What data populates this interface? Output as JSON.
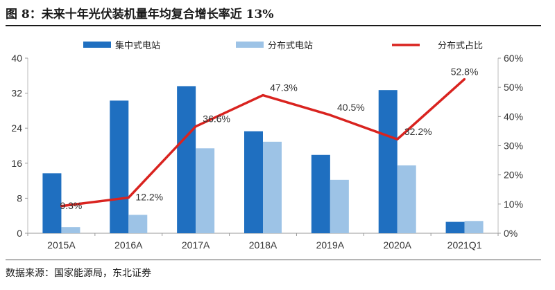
{
  "figure": {
    "title": "图 8：未来十年光伏装机量年均复合增长率近 13%",
    "source": "数据来源：国家能源局，东北证券"
  },
  "chart_data": {
    "type": "bar",
    "categories": [
      "2015A",
      "2016A",
      "2017A",
      "2018A",
      "2019A",
      "2020A",
      "2021Q1"
    ],
    "series": [
      {
        "name": "集中式电站",
        "type": "bar",
        "axis": "left",
        "color": "#1f6fc0",
        "values": [
          13.7,
          30.3,
          33.6,
          23.3,
          17.9,
          32.7,
          2.6
        ]
      },
      {
        "name": "分布式电站",
        "type": "bar",
        "axis": "left",
        "color": "#9dc3e6",
        "values": [
          1.4,
          4.2,
          19.4,
          20.9,
          12.2,
          15.5,
          2.8
        ]
      },
      {
        "name": "分布式占比",
        "type": "line",
        "axis": "right",
        "color": "#d9231f",
        "values": [
          9.3,
          12.2,
          36.6,
          47.3,
          40.5,
          32.2,
          52.8
        ],
        "labels": [
          "9.3%",
          "12.2%",
          "36.6%",
          "47.3%",
          "40.5%",
          "32.2%",
          "52.8%"
        ]
      }
    ],
    "y_left": {
      "ylim": [
        0,
        40
      ],
      "ticks": [
        "0",
        "8",
        "16",
        "24",
        "32",
        "40"
      ]
    },
    "y_right": {
      "ylim": [
        0,
        60
      ],
      "ticks": [
        "0%",
        "10%",
        "20%",
        "30%",
        "40%",
        "50%",
        "60%"
      ]
    },
    "grid": false,
    "legend_position": "top"
  }
}
